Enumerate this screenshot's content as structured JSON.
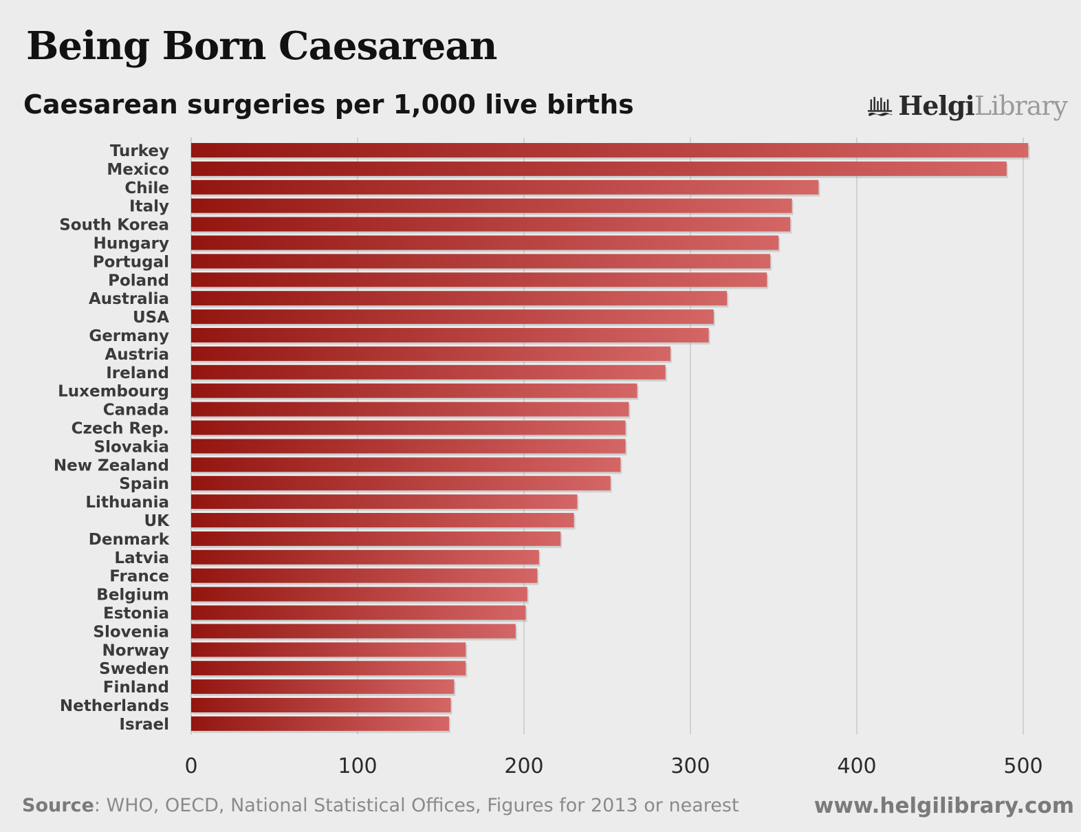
{
  "title": "Being Born Caesarean",
  "subtitle": "Caesarean surgeries per 1,000 live births",
  "logo": {
    "bold": "Helgi",
    "light": "Library",
    "icon": "helgi-library-logo-icon"
  },
  "footer": {
    "source_label": "Source",
    "source_text": ": WHO, OECD, National Statistical Offices, Figures for 2013 or nearest",
    "website": "www.helgilibrary.com"
  },
  "colors": {
    "bar_dark": "#931510",
    "bar_light": "#d46666",
    "grid": "#c8c8c8",
    "background": "#ececec"
  },
  "chart_data": {
    "type": "bar",
    "orientation": "horizontal",
    "title": "Being Born Caesarean",
    "subtitle": "Caesarean surgeries per 1,000 live births",
    "xlim": [
      0,
      520
    ],
    "xticks": [
      0,
      100,
      200,
      300,
      400,
      500
    ],
    "grid": true,
    "categories": [
      "Turkey",
      "Mexico",
      "Chile",
      "Italy",
      "South Korea",
      "Hungary",
      "Portugal",
      "Poland",
      "Australia",
      "USA",
      "Germany",
      "Austria",
      "Ireland",
      "Luxembourg",
      "Canada",
      "Czech Rep.",
      "Slovakia",
      "New Zealand",
      "Spain",
      "Lithuania",
      "UK",
      "Denmark",
      "Latvia",
      "France",
      "Belgium",
      "Estonia",
      "Slovenia",
      "Norway",
      "Sweden",
      "Finland",
      "Netherlands",
      "Israel"
    ],
    "values": [
      503,
      490,
      377,
      361,
      360,
      353,
      348,
      346,
      322,
      314,
      311,
      288,
      285,
      268,
      263,
      261,
      261,
      258,
      252,
      232,
      230,
      222,
      209,
      208,
      202,
      201,
      195,
      165,
      165,
      158,
      156,
      155
    ]
  }
}
